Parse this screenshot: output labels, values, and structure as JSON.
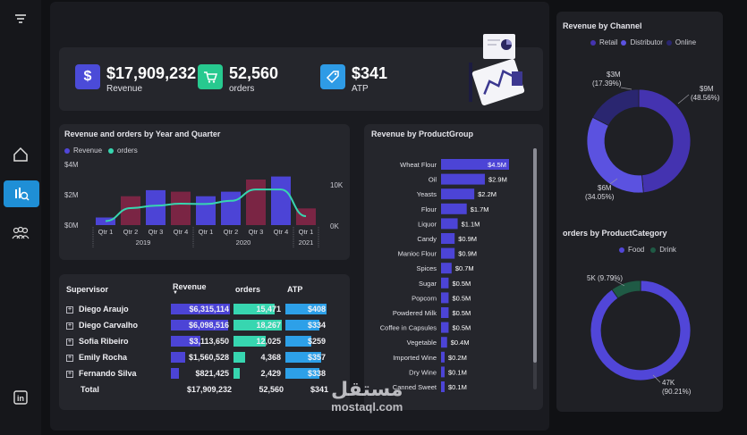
{
  "kpis": {
    "revenue": {
      "value": "$17,909,232",
      "label": "Revenue",
      "icon": "dollar-icon",
      "color": "#4b4bd8"
    },
    "orders": {
      "value": "52,560",
      "label": "orders",
      "icon": "cart-icon",
      "color": "#27c98f"
    },
    "atp": {
      "value": "$341",
      "label": "ATP",
      "icon": "price-tag-icon",
      "color": "#2e9be6"
    }
  },
  "colors": {
    "revenue": "#4c44d6",
    "orders": "#37d6b0",
    "maroon": "#7a2544",
    "retail": "#4433b0",
    "distributor": "#5b52e0",
    "online": "#2a2670",
    "food": "#5146d8",
    "drink": "#1f5a45",
    "atp": "#2da0e8"
  },
  "combo_chart": {
    "title": "Revenue and orders by Year and Quarter",
    "legend": [
      "Revenue",
      "orders"
    ],
    "y_left_ticks": [
      "$4M",
      "$2M",
      "$0M"
    ],
    "y_right_ticks": [
      "10K",
      "0K"
    ],
    "quarters": [
      "Qtr 1",
      "Qtr 2",
      "Qtr 3",
      "Qtr 4",
      "Qtr 1",
      "Qtr 2",
      "Qtr 3",
      "Qtr 4",
      "Qtr 1"
    ],
    "years": [
      "2019",
      "2020",
      "2021"
    ]
  },
  "product_group": {
    "title": "Revenue by ProductGroup"
  },
  "channel": {
    "title": "Revenue by Channel",
    "legend": [
      "Retail",
      "Distributor",
      "Online"
    ],
    "labels": {
      "online": "$3M",
      "online_pct": "(17.39%)",
      "retail": "$9M",
      "retail_pct": "(48.56%)",
      "distributor": "$6M",
      "distributor_pct": "(34.05%)"
    }
  },
  "category": {
    "title": "orders by ProductCategory",
    "legend": [
      "Food",
      "Drink"
    ],
    "labels": {
      "drink": "5K (9.79%)",
      "food": "47K",
      "food_pct": "(90.21%)"
    }
  },
  "supervisor_table": {
    "headers": [
      "Supervisor",
      "Revenue",
      "orders",
      "ATP"
    ],
    "rows": [
      {
        "name": "Diego Araujo",
        "revenue": "$6,315,114",
        "orders": "15,471",
        "atp": "$408"
      },
      {
        "name": "Diego Carvalho",
        "revenue": "$6,098,516",
        "orders": "18,267",
        "atp": "$334"
      },
      {
        "name": "Sofia Ribeiro",
        "revenue": "$3,113,650",
        "orders": "12,025",
        "atp": "$259"
      },
      {
        "name": "Emily Rocha",
        "revenue": "$1,560,528",
        "orders": "4,368",
        "atp": "$357"
      },
      {
        "name": "Fernando Silva",
        "revenue": "$821,425",
        "orders": "2,429",
        "atp": "$338"
      }
    ],
    "total": {
      "label": "Total",
      "revenue": "$17,909,232",
      "orders": "52,560",
      "atp": "$341"
    }
  },
  "watermark": {
    "arabic": "مستقل",
    "latin": "mostaql.com"
  },
  "chart_data": [
    {
      "type": "bar",
      "title": "Revenue and orders by Year and Quarter",
      "categories": [
        "2019 Qtr 1",
        "2019 Qtr 2",
        "2019 Qtr 3",
        "2019 Qtr 4",
        "2020 Qtr 1",
        "2020 Qtr 2",
        "2020 Qtr 3",
        "2020 Qtr 4",
        "2021 Qtr 1"
      ],
      "series": [
        {
          "name": "Revenue",
          "values": [
            0.5,
            1.9,
            2.3,
            2.2,
            1.9,
            2.2,
            3.0,
            3.2,
            1.1
          ],
          "unit": "$M"
        },
        {
          "name": "orders",
          "values": [
            1.0,
            4.2,
            4.8,
            5.3,
            5.2,
            6.0,
            8.8,
            8.8,
            2.2
          ],
          "unit": "K"
        }
      ],
      "ylim": [
        0,
        4
      ],
      "y2lim": [
        0,
        15
      ]
    },
    {
      "type": "bar",
      "title": "Revenue by ProductGroup",
      "orientation": "horizontal",
      "categories": [
        "Wheat Flour",
        "Oil",
        "Yeasts",
        "Flour",
        "Liquor",
        "Candy",
        "Manioc Flour",
        "Spices",
        "Sugar",
        "Popcorn",
        "Powdered Milk",
        "Coffee in Capsules",
        "Vegetable",
        "Imported Wine",
        "Dry Wine",
        "Canned Sweet"
      ],
      "values": [
        4.5,
        2.9,
        2.2,
        1.7,
        1.1,
        0.9,
        0.9,
        0.7,
        0.5,
        0.5,
        0.5,
        0.5,
        0.4,
        0.2,
        0.1,
        0.1
      ],
      "labels": [
        "$4.5M",
        "$2.9M",
        "$2.2M",
        "$1.7M",
        "$1.1M",
        "$0.9M",
        "$0.9M",
        "$0.7M",
        "$0.5M",
        "$0.5M",
        "$0.5M",
        "$0.5M",
        "$0.4M",
        "$0.2M",
        "$0.1M",
        "$0.1M"
      ]
    },
    {
      "type": "pie",
      "title": "Revenue by Channel",
      "categories": [
        "Retail",
        "Distributor",
        "Online"
      ],
      "values": [
        48.56,
        34.05,
        17.39
      ]
    },
    {
      "type": "pie",
      "title": "orders by ProductCategory",
      "categories": [
        "Food",
        "Drink"
      ],
      "values": [
        90.21,
        9.79
      ]
    }
  ]
}
